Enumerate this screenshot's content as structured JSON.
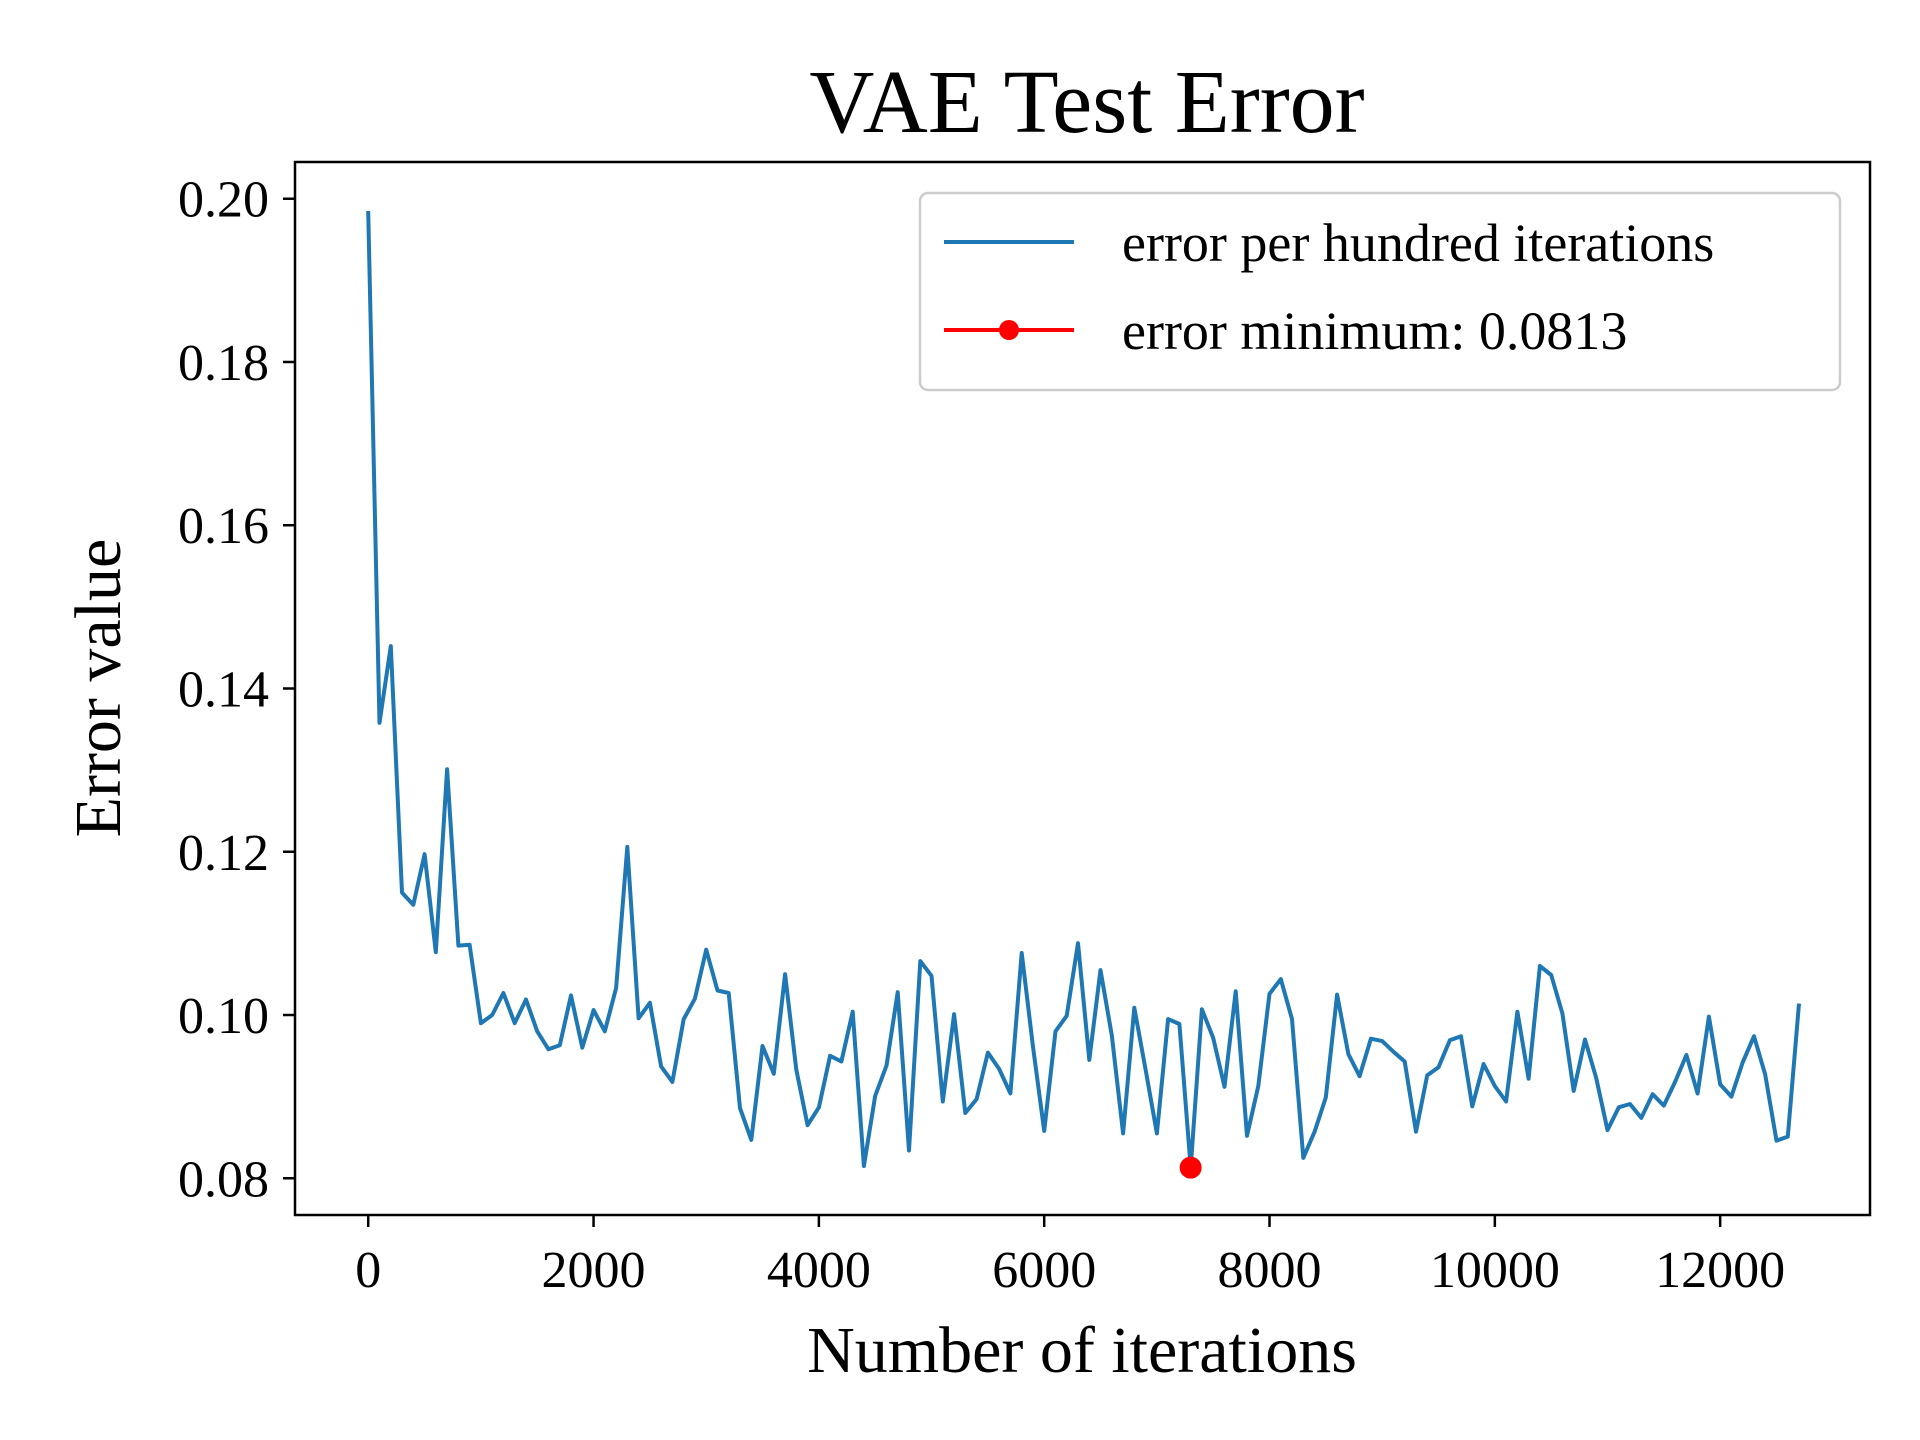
{
  "chart_data": {
    "type": "line",
    "title": "VAE  Test Error",
    "xlabel": "Number of iterations",
    "ylabel": "Error value",
    "xlim": [
      -650,
      13330
    ],
    "ylim": [
      0.0755,
      0.2045
    ],
    "xticks": [
      0,
      2000,
      4000,
      6000,
      8000,
      10000,
      12000
    ],
    "xtick_labels": [
      "0",
      "2000",
      "4000",
      "6000",
      "8000",
      "10000",
      "12000"
    ],
    "yticks": [
      0.08,
      0.1,
      0.12,
      0.14,
      0.16,
      0.18,
      0.2
    ],
    "ytick_labels": [
      "0.08",
      "0.10",
      "0.12",
      "0.14",
      "0.16",
      "0.18",
      "0.20"
    ],
    "grid": false,
    "legend_position": "top-right",
    "series": [
      {
        "name": "error per hundred iterations",
        "color": "#1f77b4",
        "x_start": 0,
        "x_step": 100,
        "values": [
          0.1985,
          0.1358,
          0.1452,
          0.115,
          0.1135,
          0.1197,
          0.1077,
          0.1301,
          0.1085,
          0.1086,
          0.099,
          0.1,
          0.1027,
          0.099,
          0.1019,
          0.098,
          0.0958,
          0.0963,
          0.1024,
          0.096,
          0.1006,
          0.098,
          0.1033,
          0.1206,
          0.0996,
          0.1015,
          0.0937,
          0.0918,
          0.0995,
          0.102,
          0.108,
          0.103,
          0.1027,
          0.0886,
          0.0847,
          0.0962,
          0.0928,
          0.105,
          0.0933,
          0.0865,
          0.0887,
          0.095,
          0.0943,
          0.1004,
          0.0815,
          0.0901,
          0.0938,
          0.1028,
          0.0834,
          0.1066,
          0.1048,
          0.0894,
          0.1001,
          0.088,
          0.0897,
          0.0954,
          0.0934,
          0.0904,
          0.1076,
          0.0962,
          0.0858,
          0.098,
          0.0999,
          0.1088,
          0.0945,
          0.1055,
          0.0975,
          0.0855,
          0.1009,
          0.0933,
          0.0855,
          0.0995,
          0.0989,
          0.0813,
          0.1007,
          0.0972,
          0.0912,
          0.1029,
          0.0852,
          0.0913,
          0.1026,
          0.1044,
          0.0995,
          0.0825,
          0.0857,
          0.0899,
          0.1025,
          0.0952,
          0.0925,
          0.0971,
          0.0968,
          0.0955,
          0.0943,
          0.0857,
          0.0926,
          0.0936,
          0.0969,
          0.0974,
          0.0888,
          0.094,
          0.0913,
          0.0894,
          0.1004,
          0.0922,
          0.106,
          0.1049,
          0.1002,
          0.0907,
          0.097,
          0.0923,
          0.0859,
          0.0887,
          0.0891,
          0.0874,
          0.0903,
          0.0889,
          0.0918,
          0.0951,
          0.0904,
          0.0998,
          0.0915,
          0.09,
          0.0942,
          0.0974,
          0.0927,
          0.0846,
          0.0851,
          0.1014
        ]
      }
    ],
    "marker": {
      "name": "error minimum: 0.0813",
      "color": "#ff0000",
      "x": 7300,
      "y": 0.0813
    }
  }
}
